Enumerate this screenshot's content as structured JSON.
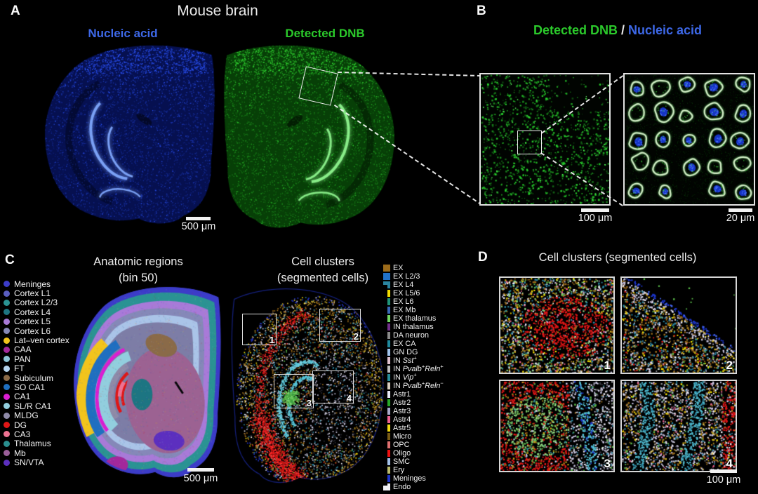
{
  "panels": {
    "a": {
      "label": "A",
      "title": "Mouse brain",
      "left_caption": "Nucleic acid",
      "right_caption": "Detected DNB",
      "scalebar": "500 μm",
      "colors": {
        "nucleic_acid": "#3d68e8",
        "detected_dnb": "#2bc92b"
      }
    },
    "b": {
      "label": "B",
      "title_dnb": "Detected DNB",
      "title_sep": " / ",
      "title_na": "Nucleic acid",
      "scalebar_left": "100 μm",
      "scalebar_right": "20 μm"
    },
    "c": {
      "label": "C",
      "left_title_line1": "Anatomic regions",
      "left_title_line2": "(bin 50)",
      "right_title_line1": "Cell clusters",
      "right_title_line2": "(segmented cells)",
      "scalebar": "500 μm",
      "inset_numbers": [
        "1",
        "2",
        "3",
        "4"
      ],
      "region_legend": [
        {
          "label": "Meninges",
          "color": "#3c3cc8"
        },
        {
          "label": "Cortex L1",
          "color": "#5a5ec0"
        },
        {
          "label": "Cortex L2/3",
          "color": "#2a9393"
        },
        {
          "label": "Cortex L4",
          "color": "#1d7582"
        },
        {
          "label": "Cortex L5",
          "color": "#a87ad8"
        },
        {
          "label": "Cortex L6",
          "color": "#8588b8"
        },
        {
          "label": "Lat–ven cortex",
          "color": "#f2c41c"
        },
        {
          "label": "CAA",
          "color": "#a3289b"
        },
        {
          "label": "PAN",
          "color": "#8ec6d8"
        },
        {
          "label": "FT",
          "color": "#b5d4f0"
        },
        {
          "label": "Subiculum",
          "color": "#8a6a48"
        },
        {
          "label": "SO CA1",
          "color": "#1f6fc0"
        },
        {
          "label": "CA1",
          "color": "#da1ed2"
        },
        {
          "label": "SL/R CA1",
          "color": "#92cede"
        },
        {
          "label": "MLDG",
          "color": "#8f8aa8"
        },
        {
          "label": "DG",
          "color": "#e01616"
        },
        {
          "label": "CA3",
          "color": "#ee7292"
        },
        {
          "label": "Thalamus",
          "color": "#2a8f8f"
        },
        {
          "label": "Mb",
          "color": "#9a5f9a"
        },
        {
          "label": "SN/VTA",
          "color": "#5c2fbf"
        }
      ],
      "cluster_legend": [
        {
          "label": "EX",
          "color": "#9c6b1a"
        },
        {
          "label": "EX L2/3",
          "color": "#2272c8"
        },
        {
          "label": "EX L4",
          "color": "#2a85a0"
        },
        {
          "label": "EX L5/6",
          "color": "#f2dc00"
        },
        {
          "label": "EX L6",
          "color": "#1f9478"
        },
        {
          "label": "EX Mb",
          "color": "#3a68b8"
        },
        {
          "label": "EX thalamus",
          "color": "#72d862"
        },
        {
          "label": "IN thalamus",
          "color": "#73308c"
        },
        {
          "label": "DA neuron",
          "color": "#8a8a8a"
        },
        {
          "label": "EX CA",
          "color": "#1f8a9e"
        },
        {
          "label": "GN DG",
          "color": "#a0c4ec"
        },
        {
          "label": "IN Sst+",
          "color": "#e0c2cf",
          "parts": [
            {
              "t": "IN "
            },
            {
              "t": "Sst",
              "i": true
            },
            {
              "t": "+",
              "s": true
            }
          ]
        },
        {
          "label": "IN Pvalb+Reln+",
          "color": "#bfbfbf",
          "parts": [
            {
              "t": "IN "
            },
            {
              "t": "Pvalb",
              "i": true
            },
            {
              "t": "+",
              "s": true
            },
            {
              "t": "Reln",
              "i": true
            },
            {
              "t": "+",
              "s": true
            }
          ]
        },
        {
          "label": "IN Vip+",
          "color": "#288f9a",
          "parts": [
            {
              "t": "IN "
            },
            {
              "t": "Vip",
              "i": true
            },
            {
              "t": "+",
              "s": true
            }
          ]
        },
        {
          "label": "IN Pvalb+Reln−",
          "color": "#d9cec0",
          "parts": [
            {
              "t": "IN "
            },
            {
              "t": "Pvalb",
              "i": true
            },
            {
              "t": "+",
              "s": true
            },
            {
              "t": "Reln",
              "i": true
            },
            {
              "t": "−",
              "s": true
            }
          ]
        },
        {
          "label": "Astr1",
          "color": "#e8e8f8"
        },
        {
          "label": "Astr2",
          "color": "#28a828"
        },
        {
          "label": "Astr3",
          "color": "#a8aacc"
        },
        {
          "label": "Astr4",
          "color": "#ee6292"
        },
        {
          "label": "Astr5",
          "color": "#f2da10"
        },
        {
          "label": "Micro",
          "color": "#7a5c14"
        },
        {
          "label": "OPC",
          "color": "#df7070"
        },
        {
          "label": "Oligo",
          "color": "#ee1111"
        },
        {
          "label": "SMC",
          "color": "#a4c2ea"
        },
        {
          "label": "Ery",
          "color": "#bcbc6a"
        },
        {
          "label": "Meninges",
          "color": "#1c34c8"
        },
        {
          "label": "Endo",
          "color": "#eeeef4"
        }
      ]
    },
    "d": {
      "label": "D",
      "title": "Cell clusters (segmented cells)",
      "scalebar": "100 μm",
      "tile_numbers": [
        "1",
        "2",
        "3",
        "4"
      ]
    }
  }
}
